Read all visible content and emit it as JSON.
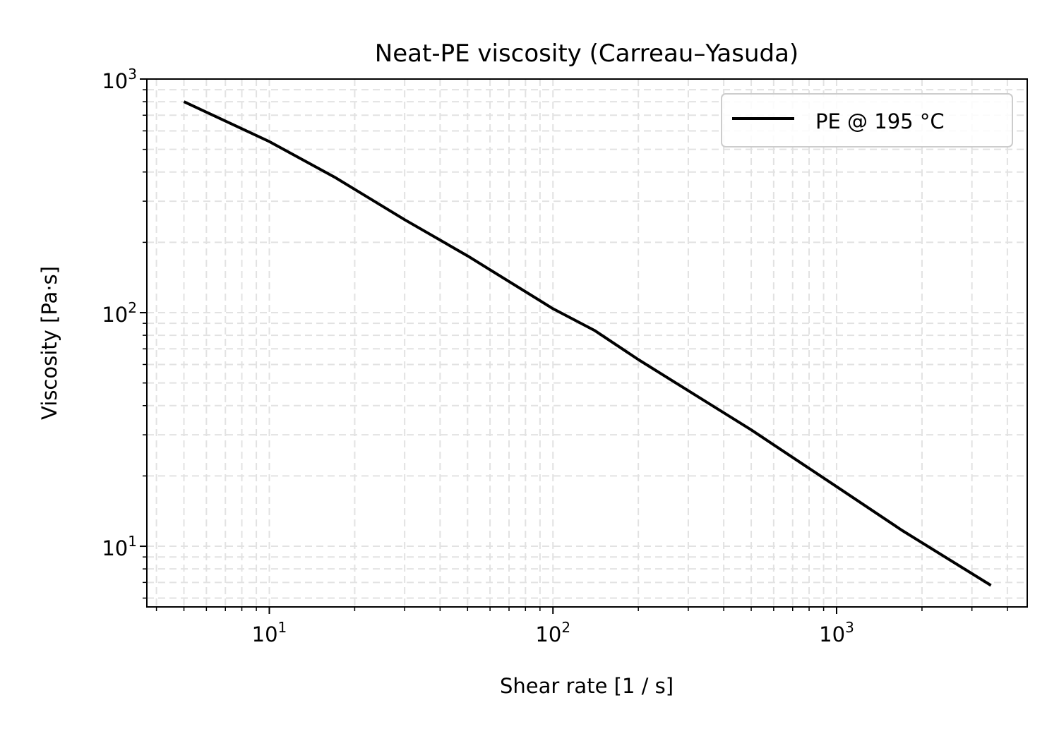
{
  "chart_data": {
    "type": "line",
    "title": "Neat-PE viscosity (Carreau–Yasuda)",
    "xlabel": "Shear rate [1 / s]",
    "ylabel": "Viscosity [Pa·s]",
    "xscale": "log",
    "yscale": "log",
    "xlim": [
      3.7,
      4700
    ],
    "ylim": [
      5.5,
      1000
    ],
    "grid": true,
    "legend_position": "top-right",
    "x_ticks": [
      {
        "value": 10,
        "base": "10",
        "exp": "1"
      },
      {
        "value": 100,
        "base": "10",
        "exp": "2"
      },
      {
        "value": 1000,
        "base": "10",
        "exp": "3"
      }
    ],
    "y_ticks": [
      {
        "value": 10,
        "base": "10",
        "exp": "1"
      },
      {
        "value": 100,
        "base": "10",
        "exp": "2"
      },
      {
        "value": 1000,
        "base": "10",
        "exp": "3"
      }
    ],
    "series": [
      {
        "name": "PE @ 195 °C",
        "color": "#000000",
        "x": [
          5,
          10,
          17,
          30,
          50,
          100,
          140,
          200,
          500,
          1000,
          1700,
          3500
        ],
        "y": [
          800,
          540,
          380,
          250,
          175,
          104,
          84,
          63,
          31.5,
          18,
          11.7,
          6.8
        ]
      }
    ]
  }
}
